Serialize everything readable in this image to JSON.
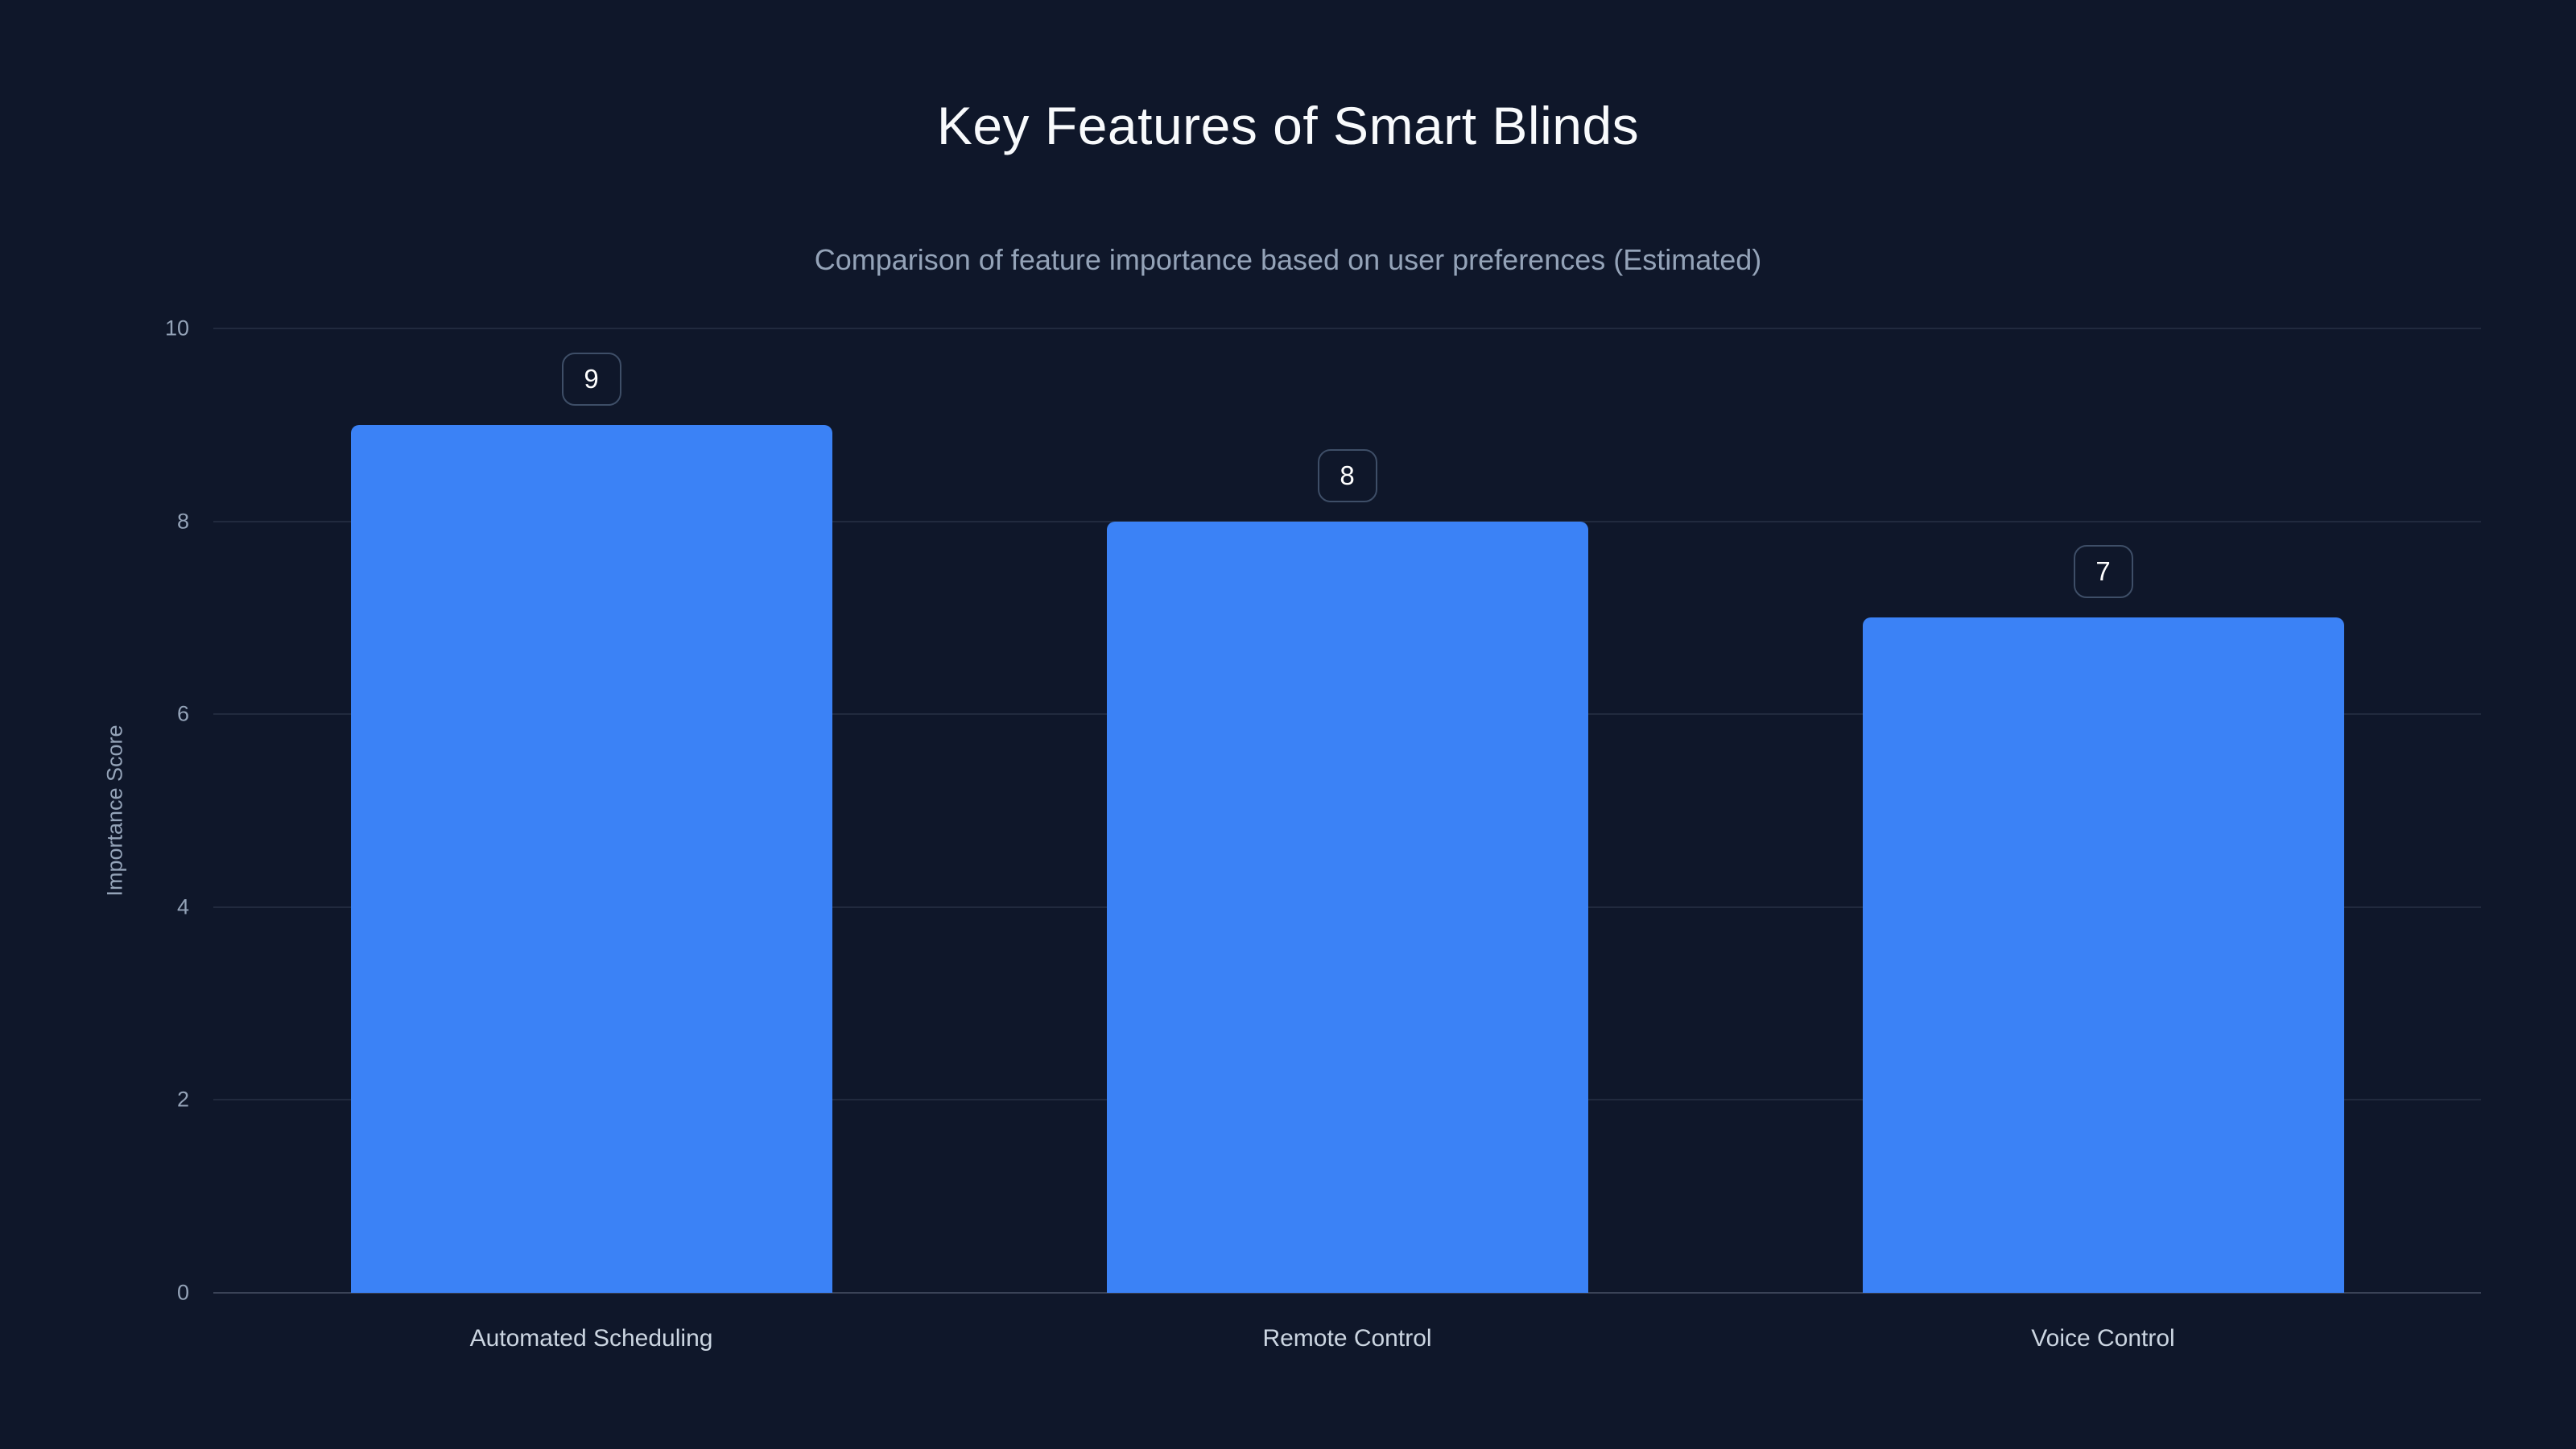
{
  "page": {
    "title": "Key Features of Smart Blinds",
    "subtitle": "Comparison of feature importance based on user preferences (Estimated)"
  },
  "chart_data": {
    "type": "bar",
    "title": "Key Features of Smart Blinds",
    "subtitle": "Comparison of feature importance based on user preferences (Estimated)",
    "categories": [
      "Automated Scheduling",
      "Remote Control",
      "Voice Control"
    ],
    "values": [
      9,
      8,
      7
    ],
    "data_labels": [
      "9",
      "8",
      "7"
    ],
    "xlabel": "",
    "ylabel": "Importance Score",
    "ylim": [
      0,
      10
    ],
    "yticks": [
      0,
      2,
      4,
      6,
      8,
      10
    ],
    "grid": true,
    "legend": false,
    "colors": {
      "background": "#0f172a",
      "bar": "#3b82f6",
      "grid": "rgba(148,163,184,0.14)",
      "axis_text": "#94a3b8",
      "category_text": "#cbd5e1",
      "title_text": "#f8fafc",
      "badge_border": "#3e4e67",
      "badge_text": "#ffffff"
    }
  }
}
